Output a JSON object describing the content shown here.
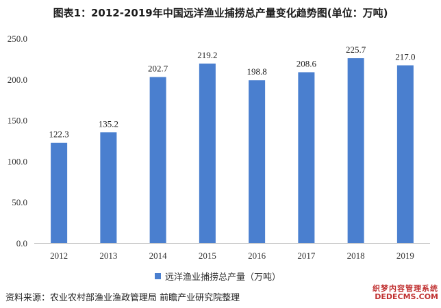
{
  "title": "图表1：2012-2019年中国远洋渔业捕捞总产量变化趋势图(单位：万吨)",
  "source": "资料来源：农业农村部渔业渔政管理局 前瞻产业研究院整理",
  "watermark": {
    "line1": "织梦内容管理系统",
    "line2": "DEDECMS.COM"
  },
  "colors": {
    "bar": "#4a7fcf",
    "axis": "#bfbfbf"
  },
  "chart_data": {
    "type": "bar",
    "categories": [
      "2012",
      "2013",
      "2014",
      "2015",
      "2016",
      "2017",
      "2018",
      "2019"
    ],
    "series": [
      {
        "name": "远洋渔业捕捞总产量（万吨）",
        "values": [
          122.3,
          135.2,
          202.7,
          219.2,
          198.8,
          208.6,
          225.7,
          217.0
        ],
        "labels": [
          "122.3",
          "135.2",
          "202.7",
          "219.2",
          "198.8",
          "208.6",
          "225.7",
          "217.0"
        ]
      }
    ],
    "ylim": [
      0,
      250
    ],
    "yticks": [
      "0.0",
      "50.0",
      "100.0",
      "150.0",
      "200.0",
      "250.0"
    ],
    "ytick_values": [
      0,
      50,
      100,
      150,
      200,
      250
    ],
    "grid": false,
    "legend_position": "bottom-center"
  }
}
